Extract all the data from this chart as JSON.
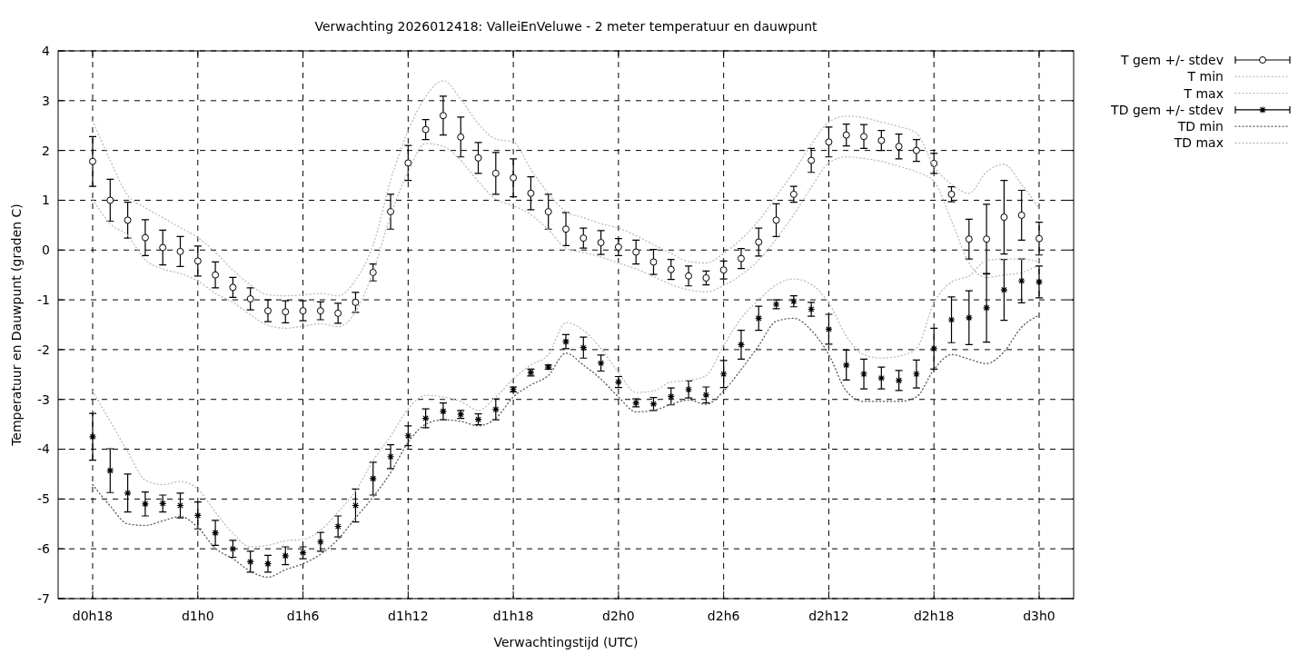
{
  "chart_data": {
    "type": "scatter",
    "title": "Verwachting 2026012418: ValleiEnVeluwe - 2 meter temperatuur en dauwpunt",
    "xlabel": "Verwachtingstijd (UTC)",
    "ylabel": "Temperatuur en Dauwpunt (graden C)",
    "categories": [
      "d0h18",
      null,
      null,
      null,
      null,
      null,
      "d1h0",
      null,
      null,
      null,
      null,
      null,
      "d1h6",
      null,
      null,
      null,
      null,
      null,
      "d1h12",
      null,
      null,
      null,
      null,
      null,
      "d1h18",
      null,
      null,
      null,
      null,
      null,
      "d2h0",
      null,
      null,
      null,
      null,
      null,
      "d2h6",
      null,
      null,
      null,
      null,
      null,
      "d2h12",
      null,
      null,
      null,
      null,
      null,
      "d2h18",
      null,
      null,
      null,
      null,
      null,
      "d3h0"
    ],
    "ylim": [
      -7,
      4
    ],
    "yticks": [
      -7,
      -6,
      -5,
      -4,
      -3,
      -2,
      -1,
      0,
      1,
      2,
      3,
      4
    ],
    "grid": true,
    "legend": "top right",
    "series": [
      {
        "name": "T gem +/- stdev",
        "marker": "circle",
        "color": "#000000",
        "values": [
          1.78,
          1.0,
          0.6,
          0.25,
          0.05,
          -0.03,
          -0.22,
          -0.5,
          -0.75,
          -0.98,
          -1.22,
          -1.24,
          -1.22,
          -1.22,
          -1.27,
          -1.05,
          -0.45,
          0.77,
          1.75,
          2.42,
          2.7,
          2.27,
          1.85,
          1.54,
          1.45,
          1.14,
          0.77,
          0.42,
          0.24,
          0.15,
          0.06,
          -0.04,
          -0.24,
          -0.39,
          -0.52,
          -0.56,
          -0.4,
          -0.17,
          0.16,
          0.6,
          1.12,
          1.8,
          2.17,
          2.31,
          2.28,
          2.2,
          2.08,
          2.0,
          1.74,
          1.12,
          0.22,
          0.22,
          0.66,
          0.7,
          0.23
        ],
        "errors": [
          0.5,
          0.42,
          0.36,
          0.36,
          0.35,
          0.3,
          0.3,
          0.26,
          0.2,
          0.22,
          0.22,
          0.22,
          0.2,
          0.18,
          0.2,
          0.2,
          0.17,
          0.35,
          0.35,
          0.2,
          0.39,
          0.4,
          0.31,
          0.42,
          0.38,
          0.33,
          0.35,
          0.33,
          0.2,
          0.24,
          0.17,
          0.24,
          0.25,
          0.2,
          0.2,
          0.14,
          0.18,
          0.2,
          0.28,
          0.33,
          0.16,
          0.24,
          0.3,
          0.22,
          0.24,
          0.2,
          0.25,
          0.22,
          0.2,
          0.15,
          0.4,
          0.7,
          0.74,
          0.5,
          0.33
        ]
      },
      {
        "name": "T min",
        "type": "line",
        "line_style": "dotted",
        "color": "#bbbbbb",
        "values": [
          1.02,
          0.53,
          0.29,
          -0.2,
          -0.38,
          -0.47,
          -0.62,
          -0.87,
          -1.05,
          -1.3,
          -1.51,
          -1.57,
          -1.53,
          -1.48,
          -1.54,
          -1.24,
          -0.44,
          0.7,
          1.57,
          2.14,
          2.08,
          1.8,
          1.38,
          1.02,
          0.89,
          0.71,
          0.41,
          0.04,
          -0.05,
          -0.14,
          -0.26,
          -0.38,
          -0.53,
          -0.69,
          -0.8,
          -0.84,
          -0.71,
          -0.5,
          -0.2,
          0.22,
          0.71,
          1.26,
          1.75,
          1.87,
          1.84,
          1.78,
          1.68,
          1.57,
          1.38,
          0.59,
          -0.26,
          -0.55,
          -0.5,
          -0.45,
          -0.3
        ]
      },
      {
        "name": "T max",
        "type": "line",
        "line_style": "dotted",
        "color": "#bbbbbb",
        "values": [
          2.6,
          1.8,
          1.1,
          0.85,
          0.65,
          0.45,
          0.25,
          -0.05,
          -0.4,
          -0.7,
          -0.9,
          -0.92,
          -0.9,
          -0.87,
          -0.92,
          -0.6,
          0.1,
          1.4,
          2.4,
          3.08,
          3.4,
          3.03,
          2.54,
          2.23,
          2.17,
          1.62,
          1.14,
          0.77,
          0.65,
          0.53,
          0.44,
          0.29,
          0.11,
          -0.07,
          -0.23,
          -0.26,
          -0.07,
          0.22,
          0.59,
          1.08,
          1.57,
          2.12,
          2.57,
          2.69,
          2.66,
          2.57,
          2.48,
          2.35,
          1.68,
          1.32,
          1.14,
          1.57,
          1.72,
          1.32,
          0.84
        ]
      },
      {
        "name": "TD gem +/- stdev",
        "marker": "cross",
        "color": "#000000",
        "values": [
          -3.75,
          -4.43,
          -4.88,
          -5.1,
          -5.09,
          -5.13,
          -5.33,
          -5.68,
          -6.0,
          -6.26,
          -6.3,
          -6.14,
          -6.08,
          -5.86,
          -5.55,
          -5.13,
          -4.59,
          -4.15,
          -3.73,
          -3.38,
          -3.24,
          -3.3,
          -3.4,
          -3.2,
          -2.8,
          -2.46,
          -2.35,
          -1.84,
          -1.96,
          -2.27,
          -2.65,
          -3.07,
          -3.09,
          -2.94,
          -2.8,
          -2.91,
          -2.49,
          -1.9,
          -1.37,
          -1.09,
          -1.03,
          -1.19,
          -1.59,
          -2.31,
          -2.49,
          -2.57,
          -2.62,
          -2.49,
          -1.98,
          -1.4,
          -1.36,
          -1.16,
          -0.8,
          -0.62,
          -0.64
        ],
        "errors": [
          0.47,
          0.44,
          0.38,
          0.24,
          0.17,
          0.25,
          0.27,
          0.25,
          0.17,
          0.21,
          0.17,
          0.18,
          0.12,
          0.19,
          0.21,
          0.33,
          0.33,
          0.24,
          0.2,
          0.19,
          0.17,
          0.08,
          0.11,
          0.21,
          0.05,
          0.07,
          0.04,
          0.14,
          0.21,
          0.16,
          0.11,
          0.08,
          0.13,
          0.17,
          0.17,
          0.16,
          0.27,
          0.29,
          0.24,
          0.09,
          0.11,
          0.14,
          0.3,
          0.3,
          0.3,
          0.22,
          0.2,
          0.28,
          0.41,
          0.46,
          0.54,
          0.69,
          0.61,
          0.44,
          0.32
        ]
      },
      {
        "name": "TD min",
        "type": "line",
        "line_style": "dotted",
        "color": "#555555",
        "values": [
          -4.71,
          -5.14,
          -5.5,
          -5.53,
          -5.44,
          -5.35,
          -5.57,
          -5.99,
          -6.2,
          -6.45,
          -6.57,
          -6.42,
          -6.3,
          -6.11,
          -5.81,
          -5.38,
          -4.96,
          -4.47,
          -3.86,
          -3.5,
          -3.41,
          -3.44,
          -3.53,
          -3.38,
          -2.95,
          -2.71,
          -2.52,
          -2.07,
          -2.31,
          -2.59,
          -2.95,
          -3.25,
          -3.22,
          -3.1,
          -3.01,
          -3.1,
          -2.83,
          -2.4,
          -1.92,
          -1.43,
          -1.37,
          -1.61,
          -2.1,
          -2.83,
          -3.04,
          -3.04,
          -3.04,
          -2.95,
          -2.4,
          -2.1,
          -2.19,
          -2.28,
          -2.04,
          -1.55,
          -1.31
        ]
      },
      {
        "name": "TD max",
        "type": "line",
        "line_style": "dotted",
        "color": "#bbbbbb",
        "values": [
          -2.83,
          -3.44,
          -4.05,
          -4.62,
          -4.71,
          -4.65,
          -4.8,
          -5.26,
          -5.69,
          -5.96,
          -5.93,
          -5.84,
          -5.81,
          -5.63,
          -5.26,
          -4.84,
          -4.23,
          -3.74,
          -3.19,
          -2.92,
          -2.95,
          -3.04,
          -3.22,
          -2.95,
          -2.59,
          -2.31,
          -2.1,
          -1.46,
          -1.61,
          -1.98,
          -2.46,
          -2.86,
          -2.83,
          -2.65,
          -2.62,
          -2.52,
          -1.92,
          -1.37,
          -1.0,
          -0.7,
          -0.58,
          -0.69,
          -1.06,
          -1.73,
          -2.1,
          -2.17,
          -2.13,
          -1.98,
          -1.06,
          -0.64,
          -0.52,
          -0.21,
          -0.18,
          -0.18,
          -0.24
        ]
      }
    ]
  }
}
